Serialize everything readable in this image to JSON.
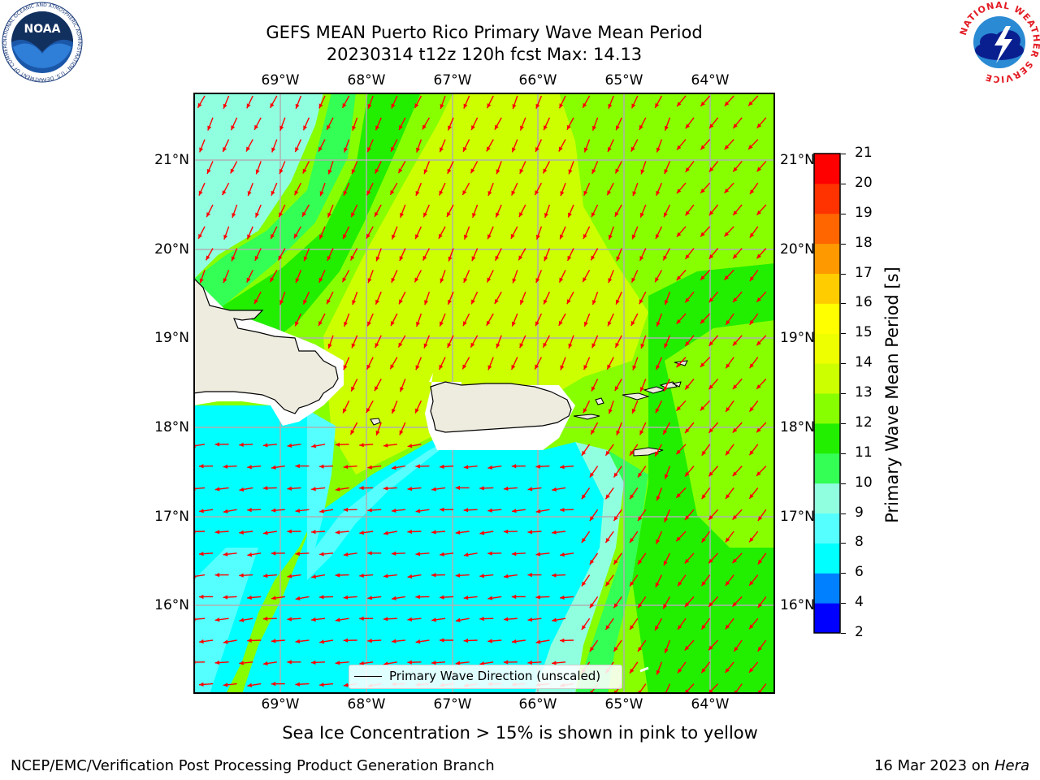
{
  "title": {
    "line1": "GEFS MEAN Puerto Rico Primary Wave Mean Period",
    "line2": "20230314 t12z 120h fcst   Max: 14.13"
  },
  "map": {
    "lon_labels": [
      "69°W",
      "68°W",
      "67°W",
      "66°W",
      "65°W",
      "64°W"
    ],
    "lat_labels": [
      "21°N",
      "20°N",
      "19°N",
      "18°N",
      "17°N",
      "16°N"
    ],
    "land_color": "#eeecdf",
    "arrow_color": "#ff0000",
    "grid_color": "#b0b0b0"
  },
  "colorbar": {
    "title": "Primary Wave Mean Period [s]",
    "tick_labels": [
      "2",
      "4",
      "6",
      "8",
      "9",
      "10",
      "11",
      "12",
      "13",
      "14",
      "15",
      "16",
      "17",
      "18",
      "19",
      "20",
      "21"
    ],
    "colors": [
      "#0000ff",
      "#0080ff",
      "#00ffff",
      "#55ffff",
      "#90ffe0",
      "#33ff55",
      "#22ee00",
      "#88ff00",
      "#ccff00",
      "#eeff00",
      "#ffff00",
      "#ffcc00",
      "#ff9900",
      "#ff6600",
      "#ff3300",
      "#ff0000"
    ]
  },
  "legend": {
    "label": "Primary Wave Direction (unscaled)"
  },
  "note": "Sea Ice Concentration > 15% is shown in pink to yellow",
  "footer": {
    "left": "NCEP/EMC/Verification Post Processing Product Generation Branch",
    "right_date": "16 Mar 2023 on",
    "right_host": "Hera"
  },
  "logos": {
    "left": "NOAA",
    "left_ring": "NATIONAL OCEANIC AND ATMOSPHERIC ADMINISTRATION · U.S. DEPARTMENT OF COMMERCE",
    "right_ring": "NATIONAL WEATHER SERVICE"
  }
}
